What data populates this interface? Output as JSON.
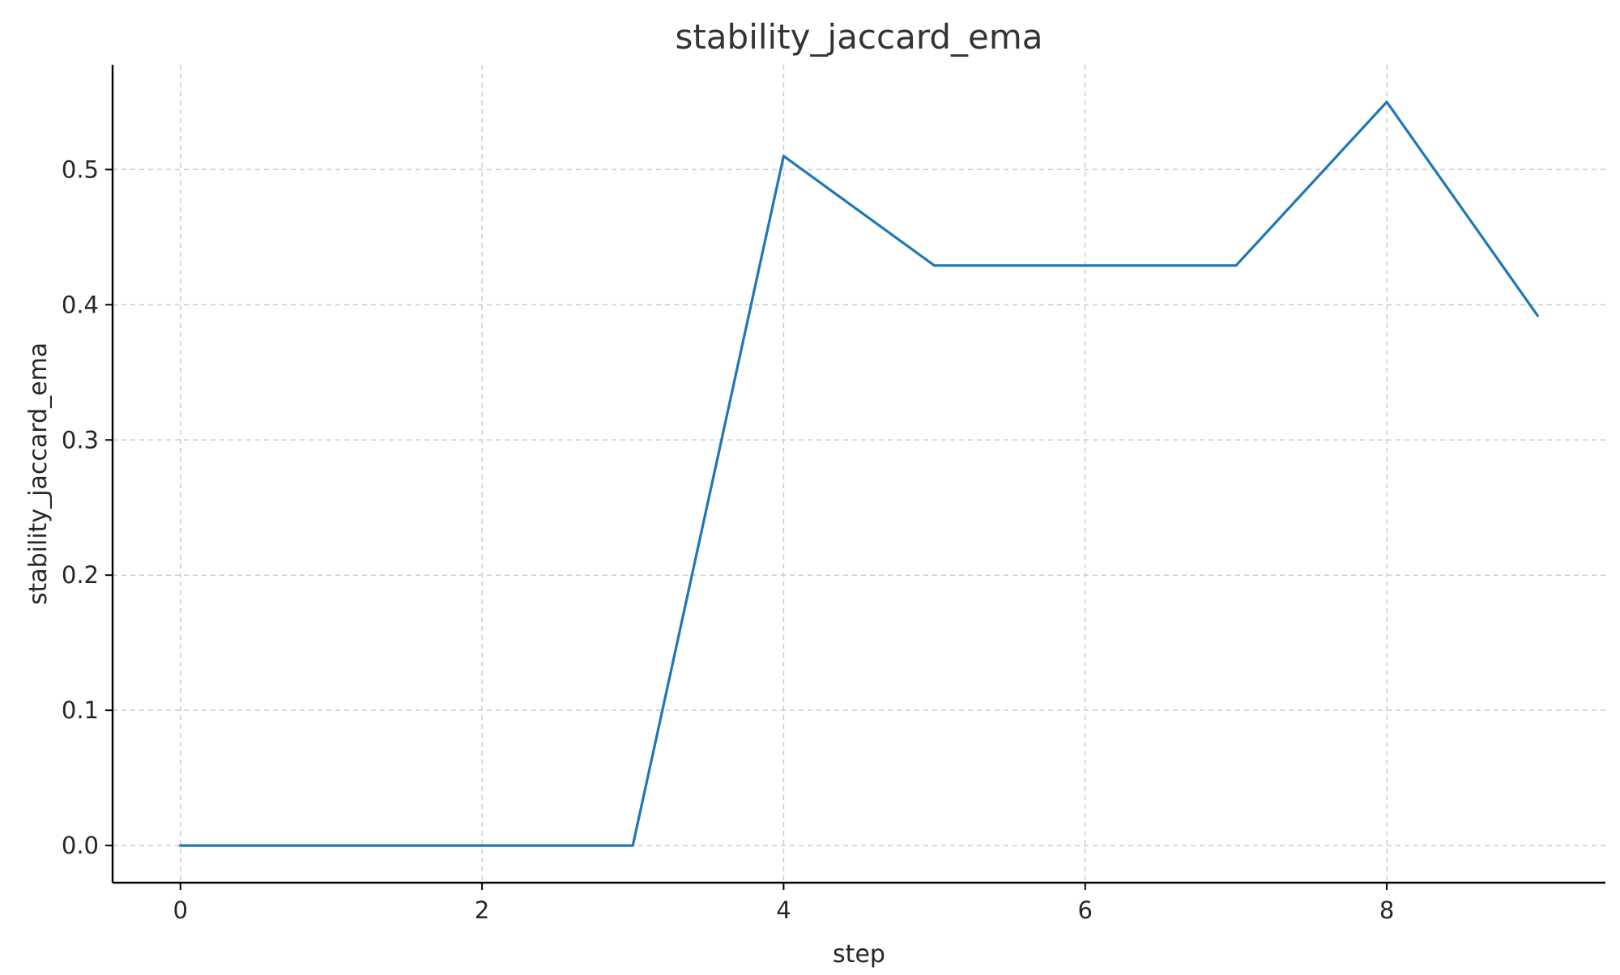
{
  "chart_data": {
    "type": "line",
    "title": "stability_jaccard_ema",
    "xlabel": "step",
    "ylabel": "stability_jaccard_ema",
    "xlim": [
      -0.45,
      9.45
    ],
    "ylim": [
      -0.0275,
      0.5775
    ],
    "xticks": [
      0,
      2,
      4,
      6,
      8
    ],
    "xtick_labels": [
      "0",
      "2",
      "4",
      "6",
      "8"
    ],
    "yticks": [
      0.0,
      0.1,
      0.2,
      0.3,
      0.4,
      0.5
    ],
    "ytick_labels": [
      "0.0",
      "0.1",
      "0.2",
      "0.3",
      "0.4",
      "0.5"
    ],
    "grid": true,
    "series": [
      {
        "color": "#1f77b4",
        "x": [
          0,
          1,
          2,
          3,
          4,
          5,
          6,
          7,
          8,
          9
        ],
        "y": [
          0.0,
          0.0,
          0.0,
          0.0,
          0.51,
          0.429,
          0.429,
          0.429,
          0.55,
          0.392
        ]
      }
    ]
  }
}
